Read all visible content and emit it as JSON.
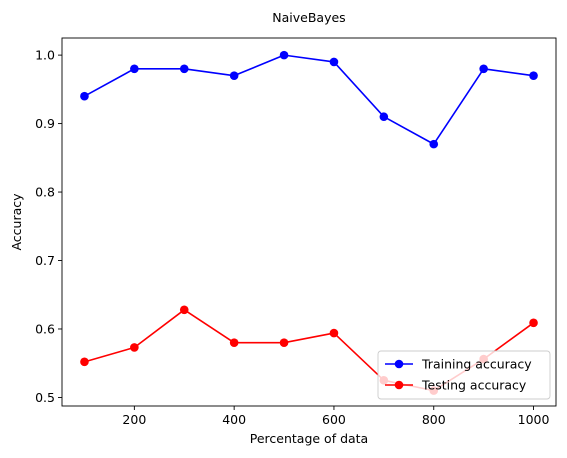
{
  "chart_data": {
    "type": "line",
    "title": "NaiveBayes",
    "xlabel": "Percentage of data",
    "ylabel": "Accuracy",
    "x": [
      100,
      200,
      300,
      400,
      500,
      600,
      700,
      800,
      900,
      1000
    ],
    "series": [
      {
        "name": "Training accuracy",
        "color": "#0000ff",
        "marker": "circle",
        "values": [
          0.94,
          0.98,
          0.98,
          0.97,
          1.0,
          0.99,
          0.91,
          0.87,
          0.98,
          0.97
        ]
      },
      {
        "name": "Testing accuracy",
        "color": "#ff0000",
        "marker": "circle",
        "values": [
          0.552,
          0.573,
          0.628,
          0.58,
          0.58,
          0.594,
          0.525,
          0.51,
          0.556,
          0.609
        ]
      }
    ],
    "xlim": [
      55,
      1045
    ],
    "ylim": [
      0.4875,
      1.025
    ],
    "xticks": [
      200,
      400,
      600,
      800,
      1000
    ],
    "xtick_labels": [
      "200",
      "400",
      "600",
      "800",
      "1000"
    ],
    "yticks": [
      0.5,
      0.6,
      0.7,
      0.8,
      0.9,
      1.0
    ],
    "ytick_labels": [
      "0.5",
      "0.6",
      "0.7",
      "0.8",
      "0.9",
      "1.0"
    ],
    "grid": false,
    "legend_position": "bottom-right"
  }
}
